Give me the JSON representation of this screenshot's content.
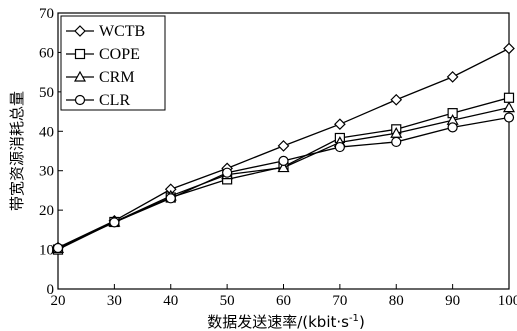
{
  "chart_data": {
    "type": "line",
    "xlabel_main": "数据发送速率/(kbit·s",
    "xlabel_sup": "-1",
    "xlabel_close": ")",
    "ylabel": "带宽资源消耗总量",
    "xlim": [
      20,
      100
    ],
    "ylim": [
      0,
      70
    ],
    "xticks": [
      20,
      30,
      40,
      50,
      60,
      70,
      80,
      90,
      100
    ],
    "yticks": [
      0,
      10,
      20,
      30,
      40,
      50,
      60,
      70
    ],
    "x": [
      20,
      30,
      40,
      50,
      60,
      70,
      80,
      90,
      100
    ],
    "legend_position": "top-left",
    "grid": false,
    "series": [
      {
        "name": "WCTB",
        "marker": "diamond",
        "values": [
          10.5,
          17.3,
          25.3,
          30.6,
          36.3,
          41.8,
          48.0,
          53.8,
          61.0
        ]
      },
      {
        "name": "COPE",
        "marker": "square",
        "values": [
          10.0,
          17.0,
          23.2,
          27.8,
          31.0,
          38.3,
          40.5,
          44.6,
          48.5
        ]
      },
      {
        "name": "CRM",
        "marker": "triangle",
        "values": [
          10.3,
          17.0,
          23.6,
          29.0,
          30.8,
          37.2,
          39.5,
          42.8,
          46.0
        ]
      },
      {
        "name": "CLR",
        "marker": "circle",
        "values": [
          10.4,
          16.9,
          23.0,
          29.5,
          32.5,
          36.0,
          37.3,
          41.0,
          43.5
        ]
      }
    ]
  }
}
